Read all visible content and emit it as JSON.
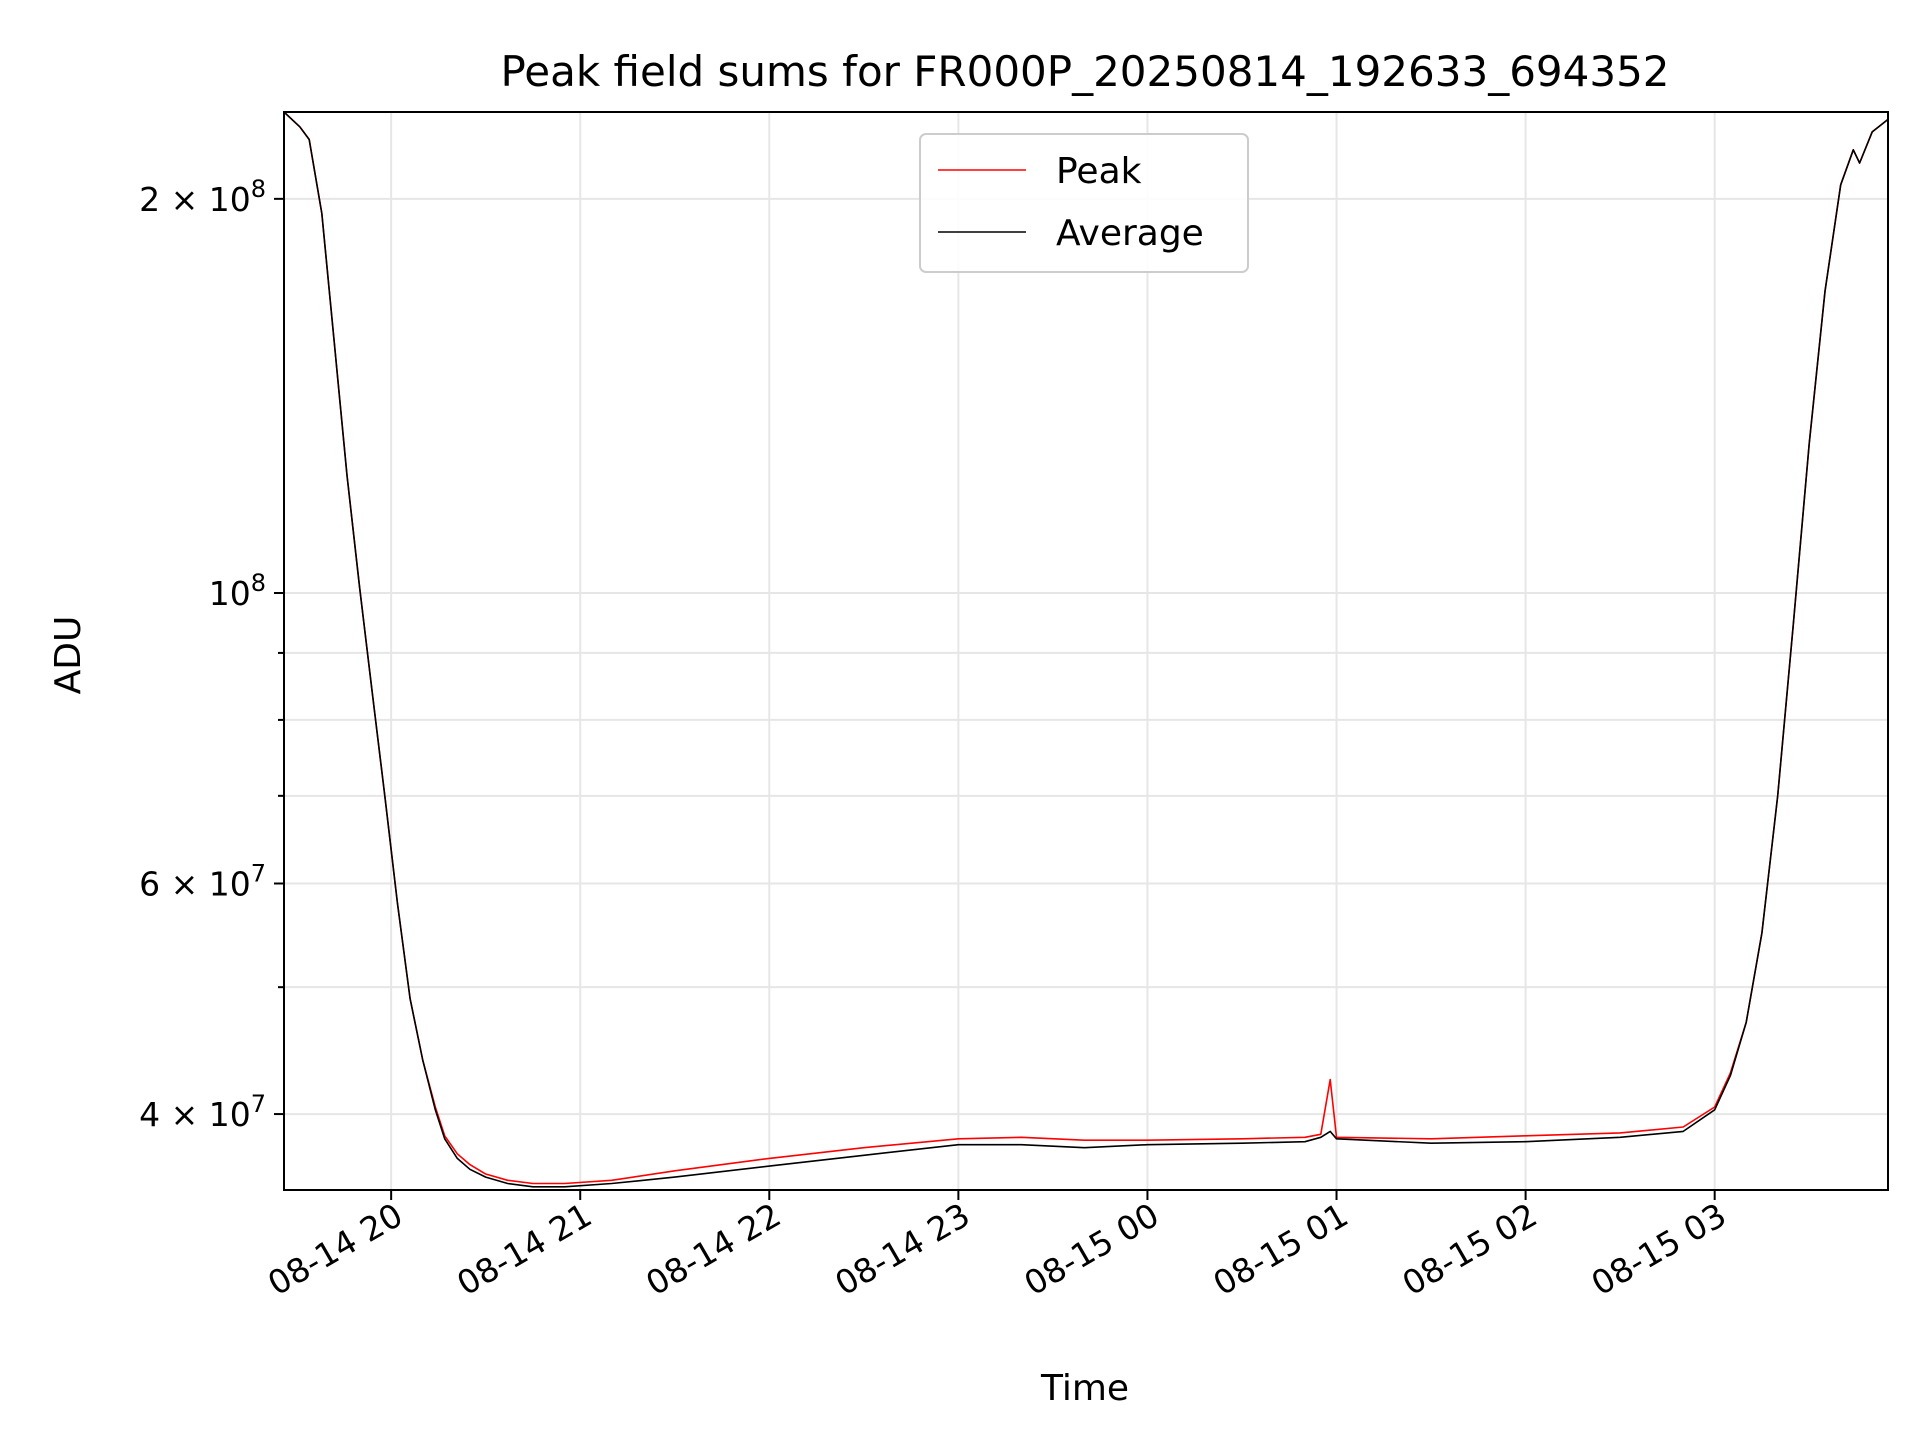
{
  "chart_data": {
    "type": "line",
    "title": "Peak field sums for FR000P_20250814_192633_694352",
    "xlabel": "Time",
    "ylabel": "ADU",
    "x_axis": "datetime",
    "y_scale": "log",
    "xlim": [
      "2025-08-14 19:26",
      "2025-08-15 03:55"
    ],
    "ylim": [
      35000000,
      233000000
    ],
    "grid": true,
    "legend_position": "upper center",
    "x_ticks": [
      {
        "value": "2025-08-14 20:00",
        "label": "08-14 20"
      },
      {
        "value": "2025-08-14 21:00",
        "label": "08-14 21"
      },
      {
        "value": "2025-08-14 22:00",
        "label": "08-14 22"
      },
      {
        "value": "2025-08-14 23:00",
        "label": "08-14 23"
      },
      {
        "value": "2025-08-15 00:00",
        "label": "08-15 00"
      },
      {
        "value": "2025-08-15 01:00",
        "label": "08-15 01"
      },
      {
        "value": "2025-08-15 02:00",
        "label": "08-15 02"
      },
      {
        "value": "2025-08-15 03:00",
        "label": "08-15 03"
      }
    ],
    "y_major_ticks": [
      {
        "value": 40000000,
        "base": "4",
        "exp": "7"
      },
      {
        "value": 60000000,
        "base": "6",
        "exp": "7"
      },
      {
        "value": 100000000,
        "base": "",
        "exp": "8"
      },
      {
        "value": 200000000,
        "base": "2",
        "exp": "8"
      }
    ],
    "y_minor_ticks": [
      50000000,
      70000000,
      80000000,
      90000000
    ],
    "series": [
      {
        "name": "Peak",
        "color": "#ff0000",
        "x": [
          "2025-08-14 19:26",
          "2025-08-14 19:31",
          "2025-08-14 19:34",
          "2025-08-14 19:38",
          "2025-08-14 19:42",
          "2025-08-14 19:46",
          "2025-08-14 19:50",
          "2025-08-14 19:54",
          "2025-08-14 19:58",
          "2025-08-14 20:02",
          "2025-08-14 20:06",
          "2025-08-14 20:10",
          "2025-08-14 20:14",
          "2025-08-14 20:17",
          "2025-08-14 20:21",
          "2025-08-14 20:25",
          "2025-08-14 20:30",
          "2025-08-14 20:37",
          "2025-08-14 20:45",
          "2025-08-14 20:55",
          "2025-08-14 21:10",
          "2025-08-14 21:30",
          "2025-08-14 22:00",
          "2025-08-14 22:30",
          "2025-08-14 23:00",
          "2025-08-14 23:20",
          "2025-08-14 23:40",
          "2025-08-15 00:00",
          "2025-08-15 00:30",
          "2025-08-15 00:50",
          "2025-08-15 00:55",
          "2025-08-15 00:58",
          "2025-08-15 01:00",
          "2025-08-15 01:30",
          "2025-08-15 02:00",
          "2025-08-15 02:30",
          "2025-08-15 02:50",
          "2025-08-15 03:00",
          "2025-08-15 03:05",
          "2025-08-15 03:10",
          "2025-08-15 03:15",
          "2025-08-15 03:20",
          "2025-08-15 03:25",
          "2025-08-15 03:30",
          "2025-08-15 03:35",
          "2025-08-15 03:40",
          "2025-08-15 03:44",
          "2025-08-15 03:46",
          "2025-08-15 03:50",
          "2025-08-15 03:55"
        ],
        "y": [
          233000000,
          227000000,
          222000000,
          195000000,
          155000000,
          123000000,
          101000000,
          84000000,
          70000000,
          58000000,
          49000000,
          44000000,
          40500000,
          38500000,
          37300000,
          36600000,
          36000000,
          35600000,
          35400000,
          35400000,
          35600000,
          36200000,
          37000000,
          37700000,
          38300000,
          38400000,
          38200000,
          38200000,
          38300000,
          38400000,
          38600000,
          42500000,
          38400000,
          38300000,
          38500000,
          38700000,
          39100000,
          40500000,
          43000000,
          47000000,
          55000000,
          70000000,
          95000000,
          130000000,
          170000000,
          205000000,
          218000000,
          213000000,
          225000000,
          230000000
        ]
      },
      {
        "name": "Average",
        "color": "#000000",
        "x": [
          "2025-08-14 19:26",
          "2025-08-14 19:31",
          "2025-08-14 19:34",
          "2025-08-14 19:38",
          "2025-08-14 19:42",
          "2025-08-14 19:46",
          "2025-08-14 19:50",
          "2025-08-14 19:54",
          "2025-08-14 19:58",
          "2025-08-14 20:02",
          "2025-08-14 20:06",
          "2025-08-14 20:10",
          "2025-08-14 20:14",
          "2025-08-14 20:17",
          "2025-08-14 20:21",
          "2025-08-14 20:25",
          "2025-08-14 20:30",
          "2025-08-14 20:37",
          "2025-08-14 20:45",
          "2025-08-14 20:55",
          "2025-08-14 21:10",
          "2025-08-14 21:30",
          "2025-08-14 22:00",
          "2025-08-14 22:30",
          "2025-08-14 23:00",
          "2025-08-14 23:20",
          "2025-08-14 23:40",
          "2025-08-15 00:00",
          "2025-08-15 00:30",
          "2025-08-15 00:50",
          "2025-08-15 00:55",
          "2025-08-15 00:58",
          "2025-08-15 01:00",
          "2025-08-15 01:30",
          "2025-08-15 02:00",
          "2025-08-15 02:30",
          "2025-08-15 02:50",
          "2025-08-15 03:00",
          "2025-08-15 03:05",
          "2025-08-15 03:10",
          "2025-08-15 03:15",
          "2025-08-15 03:20",
          "2025-08-15 03:25",
          "2025-08-15 03:30",
          "2025-08-15 03:35",
          "2025-08-15 03:40",
          "2025-08-15 03:44",
          "2025-08-15 03:46",
          "2025-08-15 03:50",
          "2025-08-15 03:55"
        ],
        "y": [
          233000000,
          227000000,
          222000000,
          195000000,
          155000000,
          123000000,
          101000000,
          84000000,
          70000000,
          58000000,
          49000000,
          44000000,
          40300000,
          38300000,
          37000000,
          36300000,
          35800000,
          35400000,
          35200000,
          35200000,
          35400000,
          35800000,
          36500000,
          37200000,
          37900000,
          37900000,
          37700000,
          37900000,
          38000000,
          38100000,
          38400000,
          38800000,
          38300000,
          38000000,
          38100000,
          38400000,
          38800000,
          40300000,
          42800000,
          47000000,
          55000000,
          70000000,
          95000000,
          130000000,
          170000000,
          205000000,
          218000000,
          213000000,
          225000000,
          230000000
        ]
      }
    ]
  }
}
